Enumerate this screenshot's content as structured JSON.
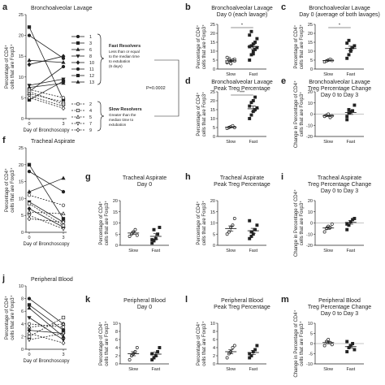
{
  "figure": {
    "pvalue": "P=0.0002",
    "legend_fast": {
      "title": "Fast Resolvers",
      "lines": [
        "Less than or equal",
        "to the median time",
        "to extubation",
        "(6 days)"
      ]
    },
    "legend_slow": {
      "title": "Slow Resolvers",
      "lines": [
        "Greater than the",
        "median time to",
        "extubation"
      ]
    }
  },
  "chart_data": [
    {
      "id": "a",
      "letter": "a",
      "type": "line",
      "title": "Bronchoalveolar Lavage",
      "xlabel": "Day of Bronchoscopy",
      "ylabel": "Percentage of CD4⁺ cells that are Foxp3⁺",
      "xlim": [
        0,
        3
      ],
      "ylim": [
        0,
        25
      ],
      "xticks": [
        "0",
        "3"
      ],
      "yticks": [
        "0",
        "5",
        "10",
        "15",
        "20",
        "25"
      ],
      "series": [
        {
          "name": "1",
          "group": "fast",
          "marker": "circle",
          "values": [
            20,
            14.5
          ]
        },
        {
          "name": "3",
          "group": "fast",
          "marker": "square",
          "values": [
            22,
            4.5
          ]
        },
        {
          "name": "6",
          "group": "fast",
          "marker": "triangle",
          "values": [
            14,
            13.5
          ]
        },
        {
          "name": "8",
          "group": "fast",
          "marker": "tri-down",
          "values": [
            8,
            9.5
          ]
        },
        {
          "name": "10",
          "group": "fast",
          "marker": "diamond",
          "values": [
            13,
            15
          ]
        },
        {
          "name": "11",
          "group": "fast",
          "marker": "circle",
          "values": [
            6.5,
            12.5
          ]
        },
        {
          "name": "12",
          "group": "fast",
          "marker": "square",
          "values": [
            4.5,
            9
          ]
        },
        {
          "name": "13",
          "group": "fast",
          "marker": "triangle",
          "values": [
            7.5,
            8.5
          ]
        },
        {
          "name": "2",
          "group": "slow",
          "marker": "circle-open",
          "values": [
            7,
            5
          ]
        },
        {
          "name": "4",
          "group": "slow",
          "marker": "square-open",
          "values": [
            6.5,
            3.5
          ]
        },
        {
          "name": "5",
          "group": "slow",
          "marker": "triangle-open",
          "values": [
            6,
            4
          ]
        },
        {
          "name": "7",
          "group": "slow",
          "marker": "tri-down-open",
          "values": [
            5.5,
            3
          ]
        },
        {
          "name": "9",
          "group": "slow",
          "marker": "diamond-open",
          "values": [
            5,
            2.5
          ]
        }
      ]
    },
    {
      "id": "b",
      "letter": "b",
      "type": "scatter",
      "title": "Bronchoalveolar Lavage\nDay 0 (each lavage)",
      "ylabel": "Percentage of CD4⁺ cells that are Foxp3⁺",
      "categories": [
        "Slow",
        "Fast"
      ],
      "ylim": [
        0,
        25
      ],
      "yticks": [
        "0",
        "5",
        "10",
        "15",
        "20",
        "25"
      ],
      "sig": "*",
      "points": [
        [
          3.5,
          4,
          4.5,
          5,
          5.5,
          4,
          6,
          3,
          5,
          4.5,
          6.5,
          5
        ],
        [
          5,
          8,
          10,
          11,
          12,
          12.5,
          13,
          14,
          15,
          17,
          19,
          21,
          8.5,
          11
        ]
      ],
      "mean": [
        4.6,
        12.5
      ],
      "sem": [
        0.4,
        1.2
      ]
    },
    {
      "id": "c",
      "letter": "c",
      "type": "scatter",
      "title": "Bronchoalveolar Lavage\nDay 0  (average of both lavages)",
      "ylabel": "Percentage of CD4⁺ cells that are Foxp3⁺",
      "categories": [
        "Slow",
        "Fast"
      ],
      "ylim": [
        0,
        25
      ],
      "yticks": [
        "0",
        "5",
        "10",
        "15",
        "20",
        "25"
      ],
      "sig": "*",
      "points": [
        [
          4,
          4.5,
          5,
          5.5,
          4.8
        ],
        [
          6,
          8,
          11,
          12,
          13,
          14.5,
          16,
          10
        ]
      ],
      "mean": [
        4.8,
        11.5
      ],
      "sem": [
        0.3,
        1.3
      ]
    },
    {
      "id": "d",
      "letter": "d",
      "type": "scatter",
      "title": "Bronchoalveolar Lavage\nPeak Treg Percentage",
      "ylabel": "Percentage of CD4⁺ cells that are Foxp3⁺",
      "categories": [
        "Slow",
        "Fast"
      ],
      "ylim": [
        0,
        25
      ],
      "yticks": [
        "0",
        "5",
        "10",
        "15",
        "20",
        "25"
      ],
      "sig": "***",
      "points": [
        [
          4.5,
          5,
          5.5,
          6,
          5
        ],
        [
          10,
          12,
          14,
          15,
          16,
          17,
          19,
          20,
          22
        ]
      ],
      "mean": [
        5.2,
        15.5
      ],
      "sem": [
        0.3,
        1.5
      ]
    },
    {
      "id": "e",
      "letter": "e",
      "type": "scatter",
      "title": "Bronchoalveolar Lavage\nTreg Percentage Change\nDay 0 to Day 3",
      "ylabel": "Change in Percentage of CD4⁺ cells that are Foxp3⁺",
      "categories": [
        "Slow",
        "Fast"
      ],
      "ylim": [
        -20,
        20
      ],
      "yticks": [
        "-20",
        "-10",
        "0",
        "10",
        "20"
      ],
      "sig": "",
      "points": [
        [
          -2,
          -1,
          0,
          -3,
          -1.5
        ],
        [
          -5,
          1,
          2,
          3,
          8,
          -2,
          4
        ]
      ],
      "mean": [
        -1.5,
        1.5
      ],
      "sem": [
        0.6,
        1.8
      ]
    },
    {
      "id": "f",
      "letter": "f",
      "type": "line",
      "title": "Tracheal Aspirate",
      "xlabel": "Day of Bronchoscopy",
      "ylabel": "Percentage of CD4⁺ cells that are Foxp3⁺",
      "xlim": [
        0,
        3
      ],
      "ylim": [
        0,
        25
      ],
      "xticks": [
        "0",
        "3"
      ],
      "yticks": [
        "0",
        "5",
        "10",
        "15",
        "20",
        "25"
      ],
      "series": [
        {
          "name": "1",
          "group": "fast",
          "marker": "circle",
          "values": [
            18,
            12
          ]
        },
        {
          "name": "3",
          "group": "fast",
          "marker": "square",
          "values": [
            20,
            4
          ]
        },
        {
          "name": "6",
          "group": "fast",
          "marker": "triangle",
          "values": [
            12,
            16
          ]
        },
        {
          "name": "8",
          "group": "fast",
          "marker": "tri-down",
          "values": [
            9,
            3
          ]
        },
        {
          "name": "10",
          "group": "fast",
          "marker": "diamond",
          "values": [
            7,
            1.5
          ]
        },
        {
          "name": "2",
          "group": "slow",
          "marker": "circle-open",
          "values": [
            11,
            8
          ]
        },
        {
          "name": "4",
          "group": "slow",
          "marker": "square-open",
          "values": [
            8.5,
            2
          ]
        },
        {
          "name": "5",
          "group": "slow",
          "marker": "triangle-open",
          "values": [
            6,
            5.5
          ]
        },
        {
          "name": "7",
          "group": "slow",
          "marker": "tri-down-open",
          "values": [
            5,
            1
          ]
        },
        {
          "name": "9",
          "group": "slow",
          "marker": "diamond-open",
          "values": [
            4,
            3
          ]
        }
      ]
    },
    {
      "id": "g",
      "letter": "g",
      "type": "scatter",
      "title": "Tracheal Aspirate\nDay 0",
      "ylabel": "Percentage of CD4⁺ cells that are Foxp3⁺",
      "categories": [
        "Slow",
        "Fast"
      ],
      "ylim": [
        0,
        20
      ],
      "yticks": [
        "0",
        "5",
        "10",
        "15",
        "20"
      ],
      "sig": "",
      "points": [
        [
          4,
          5,
          6,
          7,
          4.5
        ],
        [
          1,
          2,
          3,
          5,
          8,
          2.5,
          7
        ]
      ],
      "mean": [
        5.5,
        4
      ],
      "sem": [
        0.6,
        1.2
      ]
    },
    {
      "id": "h",
      "letter": "h",
      "type": "scatter",
      "title": "Tracheal Aspirate\nPeak Treg Percentage",
      "ylabel": "Percentage of CD4⁺ cells that are Foxp3⁺",
      "categories": [
        "Slow",
        "Fast"
      ],
      "ylim": [
        0,
        20
      ],
      "yticks": [
        "0",
        "5",
        "10",
        "15",
        "20"
      ],
      "sig": "",
      "points": [
        [
          5,
          6,
          8,
          9,
          12
        ],
        [
          3,
          4,
          5,
          7,
          9,
          11,
          6
        ]
      ],
      "mean": [
        7.5,
        6.5
      ],
      "sem": [
        1.2,
        1.1
      ]
    },
    {
      "id": "i",
      "letter": "i",
      "type": "scatter",
      "title": "Tracheal Aspirate\nTreg Percentage Change\nDay 0 to Day 3",
      "ylabel": "Change in Percentage of CD4⁺ cells that are Foxp3⁺",
      "categories": [
        "Slow",
        "Fast"
      ],
      "ylim": [
        -20,
        20
      ],
      "yticks": [
        "-20",
        "-10",
        "0",
        "10",
        "20"
      ],
      "sig": "",
      "points": [
        [
          -8,
          -5,
          -3,
          -4,
          -1
        ],
        [
          -6,
          -2,
          1,
          3,
          4,
          -1
        ]
      ],
      "mean": [
        -4.5,
        0.5
      ],
      "sem": [
        1.2,
        1.6
      ]
    },
    {
      "id": "j",
      "letter": "j",
      "type": "line",
      "title": "Peripheral Blood",
      "xlabel": "Day of Bronchoscopy",
      "ylabel": "Percentage of CD4⁺ cells that are Foxp3⁺",
      "xlim": [
        0,
        3
      ],
      "ylim": [
        0,
        10
      ],
      "xticks": [
        "0",
        "3"
      ],
      "yticks": [
        "0",
        "2",
        "4",
        "6",
        "8",
        "10"
      ],
      "series": [
        {
          "name": "1",
          "group": "fast",
          "marker": "circle",
          "values": [
            8,
            4
          ]
        },
        {
          "name": "3",
          "group": "fast",
          "marker": "square",
          "values": [
            7,
            3
          ]
        },
        {
          "name": "6",
          "group": "fast",
          "marker": "triangle",
          "values": [
            6.5,
            2
          ]
        },
        {
          "name": "8",
          "group": "fast",
          "marker": "tri-down",
          "values": [
            5,
            1.5
          ]
        },
        {
          "name": "10",
          "group": "fast",
          "marker": "diamond",
          "values": [
            3,
            2.5
          ]
        },
        {
          "name": "2",
          "group": "slow",
          "marker": "circle-open",
          "values": [
            4,
            3.5
          ]
        },
        {
          "name": "4",
          "group": "slow",
          "marker": "square-open",
          "values": [
            2,
            5
          ]
        },
        {
          "name": "5",
          "group": "slow",
          "marker": "triangle-open",
          "values": [
            3.5,
            4
          ]
        },
        {
          "name": "7",
          "group": "slow",
          "marker": "tri-down-open",
          "values": [
            1.5,
            2.5
          ]
        },
        {
          "name": "9",
          "group": "slow",
          "marker": "diamond-open",
          "values": [
            2.5,
            1
          ]
        }
      ]
    },
    {
      "id": "k",
      "letter": "k",
      "type": "scatter",
      "title": "Peripheral Blood\nDay 0",
      "ylabel": "Percentage of CD4⁺ cells that are Foxp3⁺",
      "categories": [
        "Slow",
        "Fast"
      ],
      "ylim": [
        0,
        10
      ],
      "yticks": [
        "0",
        "2",
        "4",
        "6",
        "8",
        "10"
      ],
      "sig": "",
      "points": [
        [
          1,
          2,
          2.5,
          3,
          4
        ],
        [
          1,
          1.5,
          2,
          3,
          4,
          2.5
        ]
      ],
      "mean": [
        2.5,
        2.4
      ],
      "sem": [
        0.5,
        0.5
      ]
    },
    {
      "id": "l",
      "letter": "l",
      "type": "scatter",
      "title": "Peripheral Blood\nPeak Treg Percentage",
      "ylabel": "Percentage of CD4⁺ cells that are Foxp3⁺",
      "categories": [
        "Slow",
        "Fast"
      ],
      "ylim": [
        0,
        10
      ],
      "yticks": [
        "0",
        "2",
        "4",
        "6",
        "8",
        "10"
      ],
      "sig": "",
      "points": [
        [
          1.5,
          2.5,
          3,
          4,
          4.5
        ],
        [
          1.5,
          2,
          3,
          3.5,
          4.5,
          2.5
        ]
      ],
      "mean": [
        3,
        2.8
      ],
      "sem": [
        0.5,
        0.5
      ]
    },
    {
      "id": "m",
      "letter": "m",
      "type": "scatter",
      "title": "Peripheral Blood\nTreg Percentage Change\nDay 0 to Day 3",
      "ylabel": "Change in Percentage of CD4⁺ cells that are Foxp3⁺",
      "categories": [
        "Slow",
        "Fast"
      ],
      "ylim": [
        -10,
        10
      ],
      "yticks": [
        "-10",
        "-5",
        "0",
        "5",
        "10"
      ],
      "sig": "",
      "points": [
        [
          -1,
          1,
          2,
          0.5,
          -0.5
        ],
        [
          -4,
          -2,
          -1,
          0,
          -3,
          1
        ]
      ],
      "mean": [
        0.5,
        -1.5
      ],
      "sem": [
        0.6,
        0.7
      ]
    }
  ]
}
